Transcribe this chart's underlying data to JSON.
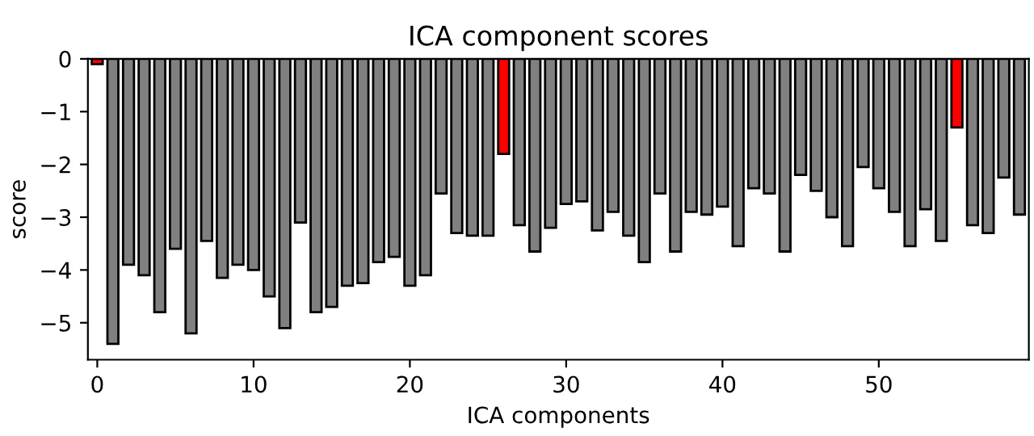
{
  "chart_data": {
    "type": "bar",
    "title": "ICA component scores",
    "xlabel": "ICA components",
    "ylabel": "score",
    "x": [
      0,
      1,
      2,
      3,
      4,
      5,
      6,
      7,
      8,
      9,
      10,
      11,
      12,
      13,
      14,
      15,
      16,
      17,
      18,
      19,
      20,
      21,
      22,
      23,
      24,
      25,
      26,
      27,
      28,
      29,
      30,
      31,
      32,
      33,
      34,
      35,
      36,
      37,
      38,
      39,
      40,
      41,
      42,
      43,
      44,
      45,
      46,
      47,
      48,
      49,
      50,
      51,
      52,
      53,
      54,
      55,
      56,
      57,
      58,
      59
    ],
    "values": [
      -0.1,
      -5.4,
      -3.9,
      -4.1,
      -4.8,
      -3.6,
      -5.2,
      -3.45,
      -4.15,
      -3.9,
      -4.0,
      -4.5,
      -5.1,
      -3.1,
      -4.8,
      -4.7,
      -4.3,
      -4.25,
      -3.85,
      -3.75,
      -4.3,
      -4.1,
      -2.55,
      -3.3,
      -3.35,
      -3.35,
      -1.8,
      -3.15,
      -3.65,
      -3.2,
      -2.75,
      -2.7,
      -3.25,
      -2.9,
      -3.35,
      -3.85,
      -2.55,
      -3.65,
      -2.9,
      -2.95,
      -2.8,
      -3.55,
      -2.45,
      -2.55,
      -3.65,
      -2.2,
      -2.5,
      -3.0,
      -3.55,
      -2.05,
      -2.45,
      -2.9,
      -3.55,
      -2.85,
      -3.45,
      -1.3,
      -3.15,
      -3.3,
      -2.25,
      -2.95
    ],
    "colors": [
      "#ff0000",
      "#808080",
      "#808080",
      "#808080",
      "#808080",
      "#808080",
      "#808080",
      "#808080",
      "#808080",
      "#808080",
      "#808080",
      "#808080",
      "#808080",
      "#808080",
      "#808080",
      "#808080",
      "#808080",
      "#808080",
      "#808080",
      "#808080",
      "#808080",
      "#808080",
      "#808080",
      "#808080",
      "#808080",
      "#808080",
      "#ff0000",
      "#808080",
      "#808080",
      "#808080",
      "#808080",
      "#808080",
      "#808080",
      "#808080",
      "#808080",
      "#808080",
      "#808080",
      "#808080",
      "#808080",
      "#808080",
      "#808080",
      "#808080",
      "#808080",
      "#808080",
      "#808080",
      "#808080",
      "#808080",
      "#808080",
      "#808080",
      "#808080",
      "#808080",
      "#808080",
      "#808080",
      "#808080",
      "#808080",
      "#ff0000",
      "#808080",
      "#808080",
      "#808080",
      "#808080"
    ],
    "xlim": [
      -0.6,
      59.6
    ],
    "xticks": [
      0,
      10,
      20,
      30,
      40,
      50
    ],
    "ylim": [
      -5.7,
      0
    ],
    "yticks": [
      {
        "value": -5,
        "label": "−5"
      },
      {
        "value": -4,
        "label": "−4"
      },
      {
        "value": -3,
        "label": "−3"
      },
      {
        "value": -2,
        "label": "−2"
      },
      {
        "value": -1,
        "label": "−1"
      },
      0
    ],
    "grid": false
  }
}
